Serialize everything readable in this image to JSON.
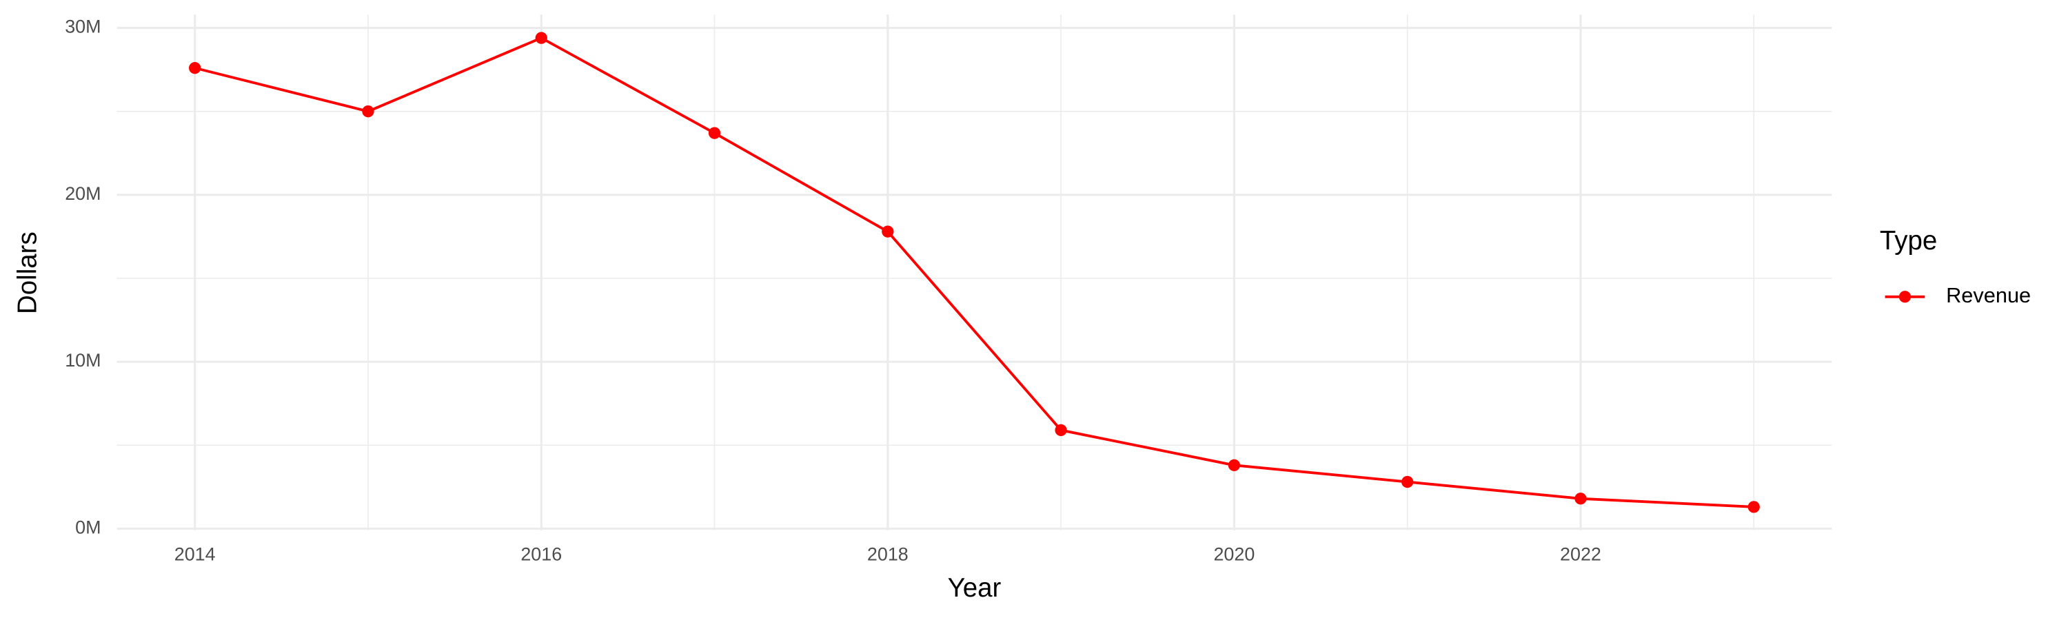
{
  "chart_data": {
    "type": "line",
    "x_label": "Year",
    "y_label": "Dollars",
    "x": [
      2014,
      2015,
      2016,
      2017,
      2018,
      2019,
      2020,
      2021,
      2022,
      2023
    ],
    "series": [
      {
        "name": "Revenue",
        "color": "#ff0000",
        "values": [
          27600000,
          25000000,
          29400000,
          23700000,
          17800000,
          5900000,
          3800000,
          2800000,
          1800000,
          1300000
        ]
      }
    ],
    "xlim": [
      2013.55,
      2023.45
    ],
    "xticks": [
      2014,
      2016,
      2018,
      2020,
      2022
    ],
    "x_minor_ticks": [
      2015,
      2017,
      2019,
      2021,
      2023
    ],
    "ylim": [
      -100000,
      30800000
    ],
    "yticks": [
      {
        "value": 0,
        "label": "0M"
      },
      {
        "value": 10000000,
        "label": "10M"
      },
      {
        "value": 20000000,
        "label": "20M"
      },
      {
        "value": 30000000,
        "label": "30M"
      }
    ],
    "y_minor_ticks": [
      5000000,
      15000000,
      25000000
    ],
    "grid": true,
    "legend_title": "Type",
    "legend_position": "right"
  }
}
